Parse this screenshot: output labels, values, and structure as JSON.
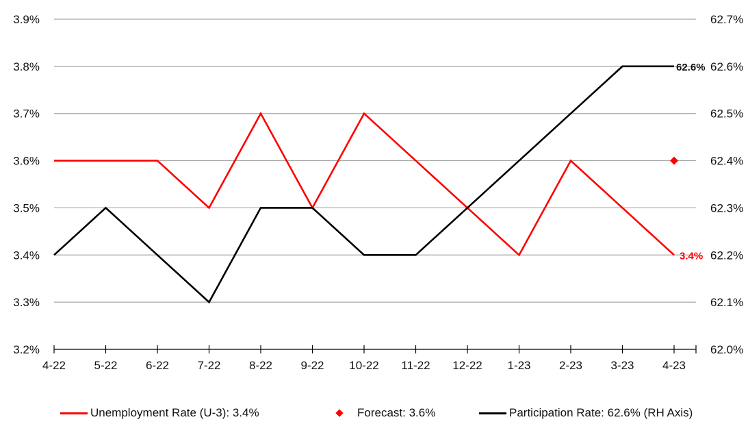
{
  "chart_data": {
    "type": "line",
    "categories": [
      "4-22",
      "5-22",
      "6-22",
      "7-22",
      "8-22",
      "9-22",
      "10-22",
      "11-22",
      "12-22",
      "1-23",
      "2-23",
      "3-23",
      "4-23"
    ],
    "left_axis": {
      "ylim": [
        3.2,
        3.9
      ],
      "ticks": [
        "3.9%",
        "3.8%",
        "3.7%",
        "3.6%",
        "3.5%",
        "3.4%",
        "3.3%",
        "3.2%"
      ]
    },
    "right_axis": {
      "ylim": [
        62.0,
        62.7
      ],
      "ticks": [
        "62.7%",
        "62.6%",
        "62.5%",
        "62.4%",
        "62.3%",
        "62.2%",
        "62.1%",
        "62.0%"
      ]
    },
    "grid": true,
    "legend_position": "bottom",
    "series": [
      {
        "name": "Unemployment Rate (U-3): 3.4%",
        "axis": "left",
        "color": "#ff0000",
        "values": [
          3.6,
          3.6,
          3.6,
          3.5,
          3.7,
          3.5,
          3.7,
          3.6,
          3.5,
          3.4,
          3.6,
          3.5,
          3.4
        ],
        "end_label": "3.4%"
      },
      {
        "name": "Forecast: 3.6%",
        "axis": "left",
        "marker": "diamond",
        "color": "#ff0000",
        "x": "4-23",
        "value": 3.6
      },
      {
        "name": "Participation Rate: 62.6% (RH Axis)",
        "axis": "right",
        "color": "#000000",
        "values": [
          62.2,
          62.3,
          62.2,
          62.1,
          62.3,
          62.3,
          62.2,
          62.2,
          62.3,
          62.4,
          62.5,
          62.6,
          62.6
        ],
        "end_label": "62.6%"
      }
    ]
  }
}
